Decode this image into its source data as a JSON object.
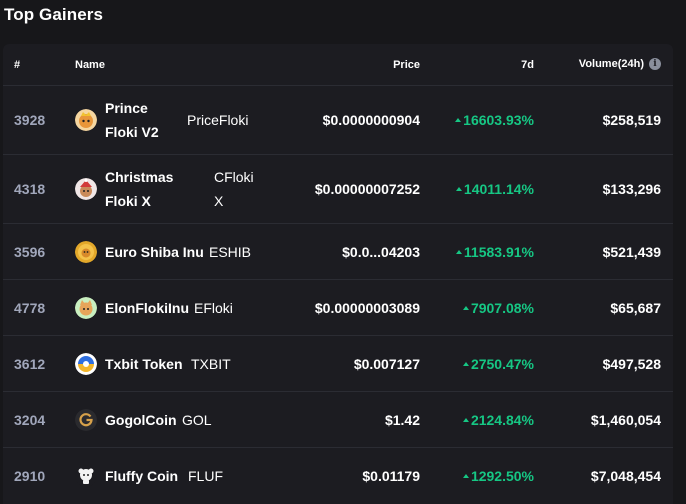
{
  "title": "Top Gainers",
  "headers": {
    "num": "#",
    "name": "Name",
    "price": "Price",
    "change": "7d",
    "volume": "Volume(24h)"
  },
  "colors": {
    "positive": "#16c784",
    "background": "#17171a",
    "panel": "#1c1c21"
  },
  "rows": [
    {
      "rank": "3928",
      "name": "Prince Floki V2",
      "symbol": "PriceFloki",
      "price": "$0.0000000904",
      "change": "16603.93%",
      "volume": "$258,519",
      "icon": "prince-floki-coin-icon"
    },
    {
      "rank": "4318",
      "name": "Christmas Floki X",
      "symbol": "CFloki X",
      "price": "$0.00000007252",
      "change": "14011.14%",
      "volume": "$133,296",
      "icon": "christmas-floki-coin-icon"
    },
    {
      "rank": "3596",
      "name": "Euro Shiba Inu",
      "symbol": "ESHIB",
      "price": "$0.0...04203",
      "change": "11583.91%",
      "volume": "$521,439",
      "icon": "euro-shiba-coin-icon"
    },
    {
      "rank": "4778",
      "name": "ElonFlokiInu",
      "symbol": "EFloki",
      "price": "$0.00000003089",
      "change": "7907.08%",
      "volume": "$65,687",
      "icon": "elon-floki-coin-icon"
    },
    {
      "rank": "3612",
      "name": "Txbit Token",
      "symbol": "TXBIT",
      "price": "$0.007127",
      "change": "2750.47%",
      "volume": "$497,528",
      "icon": "txbit-coin-icon"
    },
    {
      "rank": "3204",
      "name": "GogolCoin",
      "symbol": "GOL",
      "price": "$1.42",
      "change": "2124.84%",
      "volume": "$1,460,054",
      "icon": "gogol-coin-icon"
    },
    {
      "rank": "2910",
      "name": "Fluffy Coin",
      "symbol": "FLUF",
      "price": "$0.01179",
      "change": "1292.50%",
      "volume": "$7,048,454",
      "icon": "fluffy-coin-icon"
    }
  ]
}
